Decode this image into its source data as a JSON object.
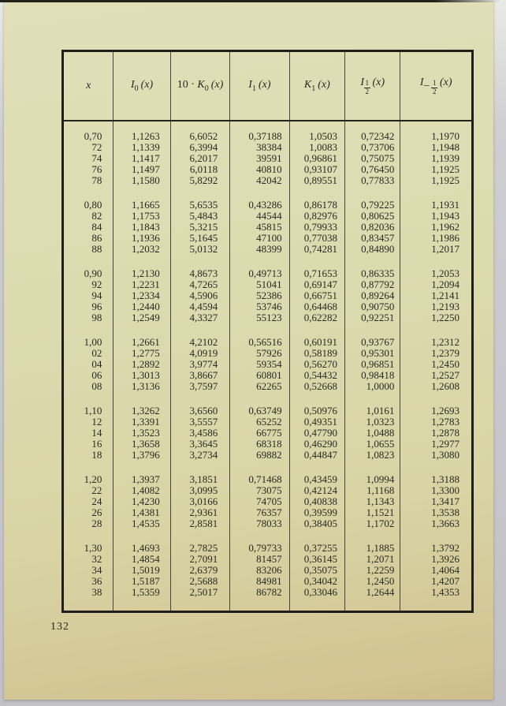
{
  "page": {
    "number": "132"
  },
  "colors": {
    "paper": "#dcdbb0",
    "paper_shadow": "#d2c392",
    "ink": "#2b2823",
    "border": "#211e19",
    "backdrop": "#c7c7cb"
  },
  "table": {
    "headers": [
      {
        "label": "x"
      },
      {
        "base": "I",
        "sub": "0",
        "arg": "(x)"
      },
      {
        "prefix": "10 · ",
        "base": "K",
        "sub": "0",
        "arg": "(x)"
      },
      {
        "base": "I",
        "sub": "1",
        "arg": "(x)"
      },
      {
        "base": "K",
        "sub": "1",
        "arg": "(x)"
      },
      {
        "base": "I",
        "frac_num": "1",
        "frac_den": "2",
        "arg": "(x)"
      },
      {
        "base": "I",
        "sign": "−",
        "frac_num": "1",
        "frac_den": "2",
        "arg": "(x)"
      }
    ],
    "groups": [
      {
        "rows": [
          [
            "0,70",
            "1,1263",
            "6,6052",
            "0,37188",
            "1,0503",
            "0,72342",
            "1,1970"
          ],
          [
            "72",
            "1,1339",
            "6,3994",
            "38384",
            "1,0083",
            "0,73706",
            "1,1948"
          ],
          [
            "74",
            "1,1417",
            "6,2017",
            "39591",
            "0,96861",
            "0,75075",
            "1,1939"
          ],
          [
            "76",
            "1,1497",
            "6,0118",
            "40810",
            "0,93107",
            "0,76450",
            "1,1925"
          ],
          [
            "78",
            "1,1580",
            "5,8292",
            "42042",
            "0,89551",
            "0,77833",
            "1,1925"
          ]
        ]
      },
      {
        "rows": [
          [
            "0,80",
            "1,1665",
            "5,6535",
            "0,43286",
            "0,86178",
            "0,79225",
            "1,1931"
          ],
          [
            "82",
            "1,1753",
            "5,4843",
            "44544",
            "0,82976",
            "0,80625",
            "1,1943"
          ],
          [
            "84",
            "1,1843",
            "5,3215",
            "45815",
            "0,79933",
            "0,82036",
            "1,1962"
          ],
          [
            "86",
            "1,1936",
            "5,1645",
            "47100",
            "0,77038",
            "0,83457",
            "1,1986"
          ],
          [
            "88",
            "1,2032",
            "5,0132",
            "48399",
            "0,74281",
            "0,84890",
            "1,2017"
          ]
        ]
      },
      {
        "rows": [
          [
            "0,90",
            "1,2130",
            "4,8673",
            "0,49713",
            "0,71653",
            "0,86335",
            "1,2053"
          ],
          [
            "92",
            "1,2231",
            "4,7265",
            "51041",
            "0,69147",
            "0,87792",
            "1,2094"
          ],
          [
            "94",
            "1,2334",
            "4,5906",
            "52386",
            "0,66751",
            "0,89264",
            "1,2141"
          ],
          [
            "96",
            "1,2440",
            "4,4594",
            "53746",
            "0,64468",
            "0,90750",
            "1,2193"
          ],
          [
            "98",
            "1,2549",
            "4,3327",
            "55123",
            "0,62282",
            "0,92251",
            "1,2250"
          ]
        ]
      },
      {
        "rows": [
          [
            "1,00",
            "1,2661",
            "4,2102",
            "0,56516",
            "0,60191",
            "0,93767",
            "1,2312"
          ],
          [
            "02",
            "1,2775",
            "4,0919",
            "57926",
            "0,58189",
            "0,95301",
            "1,2379"
          ],
          [
            "04",
            "1,2892",
            "3,9774",
            "59354",
            "0,56270",
            "0,96851",
            "1,2450"
          ],
          [
            "06",
            "1,3013",
            "3,8667",
            "60801",
            "0,54432",
            "0,98418",
            "1,2527"
          ],
          [
            "08",
            "1,3136",
            "3,7597",
            "62265",
            "0,52668",
            "1,0000",
            "1,2608"
          ]
        ]
      },
      {
        "rows": [
          [
            "1,10",
            "1,3262",
            "3,6560",
            "0,63749",
            "0,50976",
            "1,0161",
            "1,2693"
          ],
          [
            "12",
            "1,3391",
            "3,5557",
            "65252",
            "0,49351",
            "1,0323",
            "1,2783"
          ],
          [
            "14",
            "1,3523",
            "3,4586",
            "66775",
            "0,47790",
            "1,0488",
            "1,2878"
          ],
          [
            "16",
            "1,3658",
            "3,3645",
            "68318",
            "0,46290",
            "1,0655",
            "1,2977"
          ],
          [
            "18",
            "1,3796",
            "3,2734",
            "69882",
            "0,44847",
            "1,0823",
            "1,3080"
          ]
        ]
      },
      {
        "rows": [
          [
            "1,20",
            "1,3937",
            "3,1851",
            "0,71468",
            "0,43459",
            "1,0994",
            "1,3188"
          ],
          [
            "22",
            "1,4082",
            "3,0995",
            "73075",
            "0,42124",
            "1,1168",
            "1,3300"
          ],
          [
            "24",
            "1,4230",
            "3,0166",
            "74705",
            "0,40838",
            "1,1343",
            "1,3417"
          ],
          [
            "26",
            "1,4381",
            "2,9361",
            "76357",
            "0,39599",
            "1,1521",
            "1,3538"
          ],
          [
            "28",
            "1,4535",
            "2,8581",
            "78033",
            "0,38405",
            "1,1702",
            "1,3663"
          ]
        ]
      },
      {
        "rows": [
          [
            "1,30",
            "1,4693",
            "2,7825",
            "0,79733",
            "0,37255",
            "1,1885",
            "1,3792"
          ],
          [
            "32",
            "1,4854",
            "2,7091",
            "81457",
            "0,36145",
            "1,2071",
            "1,3926"
          ],
          [
            "34",
            "1,5019",
            "2,6379",
            "83206",
            "0,35075",
            "1,2259",
            "1,4064"
          ],
          [
            "36",
            "1,5187",
            "2,5688",
            "84981",
            "0,34042",
            "1,2450",
            "1,4207"
          ],
          [
            "38",
            "1,5359",
            "2,5017",
            "86782",
            "0,33046",
            "1,2644",
            "1,4353"
          ]
        ]
      }
    ]
  }
}
